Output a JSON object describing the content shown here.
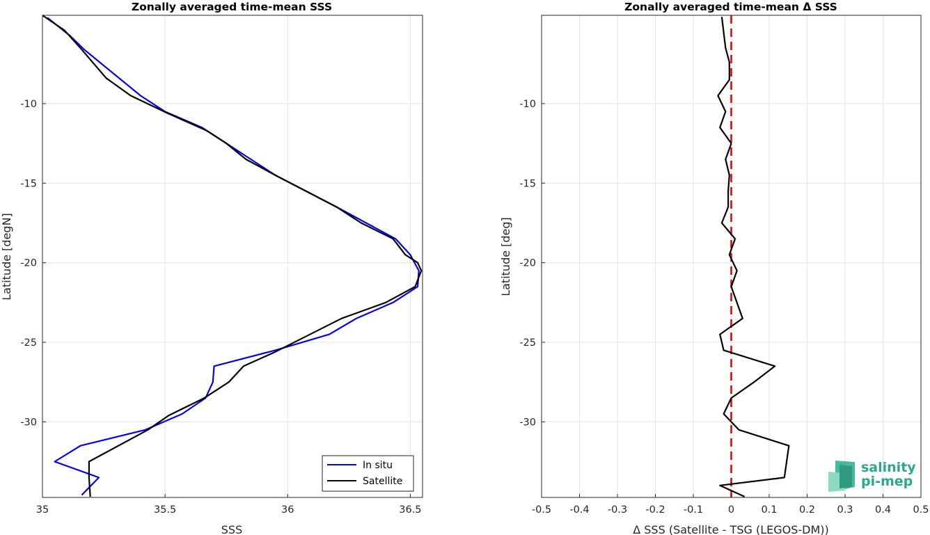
{
  "chart_data": [
    {
      "type": "line",
      "title": "Zonally averaged time-mean SSS",
      "xlabel": "SSS",
      "ylabel": "Latitude [degN]",
      "xlim": [
        35.0,
        36.55
      ],
      "ylim": [
        -34.75,
        -4.45
      ],
      "xticks": [
        35,
        35.5,
        36,
        36.5
      ],
      "xtick_labels": [
        "35",
        "35.5",
        "36",
        "36.5"
      ],
      "yticks": [
        -10,
        -15,
        -20,
        -25,
        -30
      ],
      "ytick_labels": [
        "-10",
        "-15",
        "-20",
        "-25",
        "-30"
      ],
      "grid": true,
      "legend_location": "bottom-right",
      "series": [
        {
          "name": "In situ",
          "color": "#0000ee",
          "x": [
            35.02,
            35.11,
            35.17,
            35.4,
            35.5,
            35.65,
            35.75,
            35.85,
            35.95,
            36.2,
            36.32,
            36.44,
            36.5,
            36.535,
            36.53,
            36.43,
            36.28,
            36.17,
            35.95,
            35.7,
            35.695,
            35.665,
            35.57,
            35.42,
            35.155,
            35.05,
            35.23,
            35.16
          ],
          "y": [
            -4.6,
            -5.7,
            -6.6,
            -9.5,
            -10.5,
            -11.5,
            -12.5,
            -13.5,
            -14.5,
            -16.5,
            -17.5,
            -18.5,
            -19.5,
            -20.5,
            -21.5,
            -22.5,
            -23.5,
            -24.5,
            -25.5,
            -26.5,
            -27.5,
            -28.5,
            -29.5,
            -30.5,
            -31.5,
            -32.5,
            -33.5,
            -34.6
          ]
        },
        {
          "name": "Satellite",
          "color": "#000000",
          "x": [
            35.0,
            35.09,
            35.16,
            35.26,
            35.36,
            35.51,
            35.67,
            35.75,
            35.83,
            35.95,
            36.2,
            36.3,
            36.43,
            36.48,
            36.53,
            36.545,
            36.52,
            36.4,
            36.22,
            35.95,
            35.82,
            35.76,
            35.66,
            35.515,
            35.43,
            35.19,
            35.19,
            35.195
          ],
          "y": [
            -4.45,
            -5.4,
            -6.6,
            -8.4,
            -9.5,
            -10.6,
            -11.7,
            -12.5,
            -13.5,
            -14.5,
            -16.5,
            -17.5,
            -18.5,
            -19.5,
            -20.0,
            -20.5,
            -21.5,
            -22.5,
            -23.5,
            -25.6,
            -26.5,
            -27.5,
            -28.5,
            -29.6,
            -30.5,
            -32.5,
            -33.5,
            -34.7
          ]
        }
      ]
    },
    {
      "type": "line",
      "title": "Zonally averaged time-mean Δ SSS",
      "xlabel": "Δ SSS (Satellite - TSG (LEGOS-DM))",
      "ylabel": "Latitude [deg]",
      "xlim": [
        -0.5,
        0.5
      ],
      "ylim": [
        -34.75,
        -4.45
      ],
      "xticks": [
        -0.5,
        -0.4,
        -0.3,
        -0.2,
        -0.1,
        0,
        0.1,
        0.2,
        0.3,
        0.4,
        0.5
      ],
      "xtick_labels": [
        "-0.5",
        "-0.4",
        "-0.3",
        "-0.2",
        "-0.1",
        "0",
        "0.1",
        "0.2",
        "0.3",
        "0.4",
        "0.5"
      ],
      "yticks": [
        -10,
        -15,
        -20,
        -25,
        -30
      ],
      "ytick_labels": [
        "-10",
        "-15",
        "-20",
        "-25",
        "-30"
      ],
      "grid": true,
      "reference_line": {
        "x": 0,
        "color": "#e00000",
        "style": "dashed"
      },
      "series": [
        {
          "color": "#000000",
          "x": [
            -0.025,
            -0.015,
            -0.005,
            -0.005,
            -0.035,
            -0.015,
            -0.03,
            0.0,
            -0.015,
            -0.005,
            -0.008,
            -0.008,
            -0.025,
            0.01,
            -0.005,
            0.015,
            0.0,
            0.03,
            -0.03,
            -0.02,
            0.115,
            0.06,
            0.0,
            -0.02,
            0.02,
            0.152,
            0.14,
            -0.03,
            0.035
          ],
          "y": [
            -4.55,
            -6.5,
            -7.4,
            -8.5,
            -9.5,
            -10.5,
            -11.5,
            -12.5,
            -13.5,
            -14.5,
            -15.5,
            -16.5,
            -17.5,
            -18.5,
            -19.5,
            -20.5,
            -21.5,
            -23.5,
            -24.5,
            -25.5,
            -26.5,
            -27.5,
            -28.5,
            -29.5,
            -30.5,
            -31.5,
            -33.5,
            -34.0,
            -34.7
          ]
        }
      ]
    }
  ],
  "legend": {
    "items": [
      {
        "label": "In situ",
        "color": "#0000ee"
      },
      {
        "label": "Satellite",
        "color": "#000000"
      }
    ]
  },
  "logo": {
    "line1": "salinity",
    "line2": "pi-mep"
  }
}
